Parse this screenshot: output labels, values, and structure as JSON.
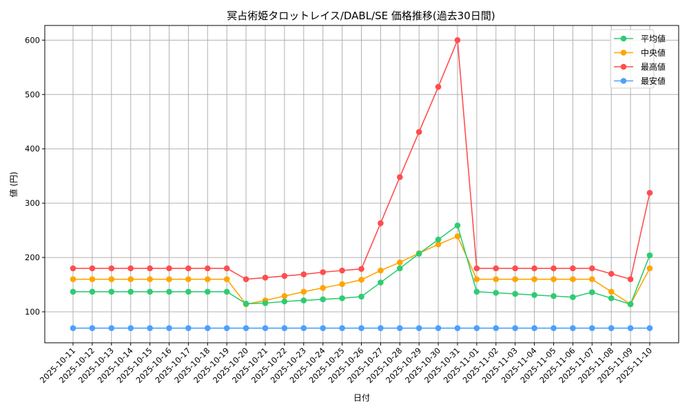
{
  "chart_data": {
    "type": "line",
    "title": "冥占術姫タロットレイス/DABL/SE 価格推移(過去30日間)",
    "xlabel": "日付",
    "ylabel": "値 (円)",
    "ylim": [
      43,
      627
    ],
    "yticks": [
      100,
      200,
      300,
      400,
      500,
      600
    ],
    "grid": true,
    "legend_position": "upper right",
    "categories": [
      "2025-10-11",
      "2025-10-12",
      "2025-10-13",
      "2025-10-14",
      "2025-10-15",
      "2025-10-16",
      "2025-10-17",
      "2025-10-18",
      "2025-10-19",
      "2025-10-20",
      "2025-10-21",
      "2025-10-22",
      "2025-10-23",
      "2025-10-24",
      "2025-10-25",
      "2025-10-26",
      "2025-10-27",
      "2025-10-28",
      "2025-10-29",
      "2025-10-30",
      "2025-10-31",
      "2025-11-01",
      "2025-11-02",
      "2025-11-03",
      "2025-11-04",
      "2025-11-05",
      "2025-11-06",
      "2025-11-07",
      "2025-11-08",
      "2025-11-09",
      "2025-11-10"
    ],
    "series": [
      {
        "name": "平均値",
        "color": "#2ecc71",
        "values": [
          137,
          137,
          137,
          137,
          137,
          137,
          137,
          137,
          137,
          115,
          116,
          119,
          121,
          123,
          125,
          128,
          154,
          180,
          207,
          233,
          259,
          137,
          135,
          133,
          131,
          129,
          127,
          136,
          125,
          114,
          204
        ]
      },
      {
        "name": "中央値",
        "color": "#ffa500",
        "values": [
          160,
          160,
          160,
          160,
          160,
          160,
          160,
          160,
          160,
          114,
          121,
          129,
          137,
          144,
          151,
          159,
          176,
          191,
          208,
          224,
          239,
          160,
          160,
          160,
          160,
          160,
          160,
          160,
          137,
          114,
          180
        ]
      },
      {
        "name": "最高値",
        "color": "#ff4d4d",
        "values": [
          180,
          180,
          180,
          180,
          180,
          180,
          180,
          180,
          180,
          160,
          163,
          166,
          169,
          173,
          176,
          179,
          263,
          348,
          431,
          514,
          600,
          180,
          180,
          180,
          180,
          180,
          180,
          180,
          170,
          160,
          319
        ]
      },
      {
        "name": "最安値",
        "color": "#4d9fff",
        "values": [
          70,
          70,
          70,
          70,
          70,
          70,
          70,
          70,
          70,
          70,
          70,
          70,
          70,
          70,
          70,
          70,
          70,
          70,
          70,
          70,
          70,
          70,
          70,
          70,
          70,
          70,
          70,
          70,
          70,
          70,
          70
        ]
      }
    ]
  }
}
